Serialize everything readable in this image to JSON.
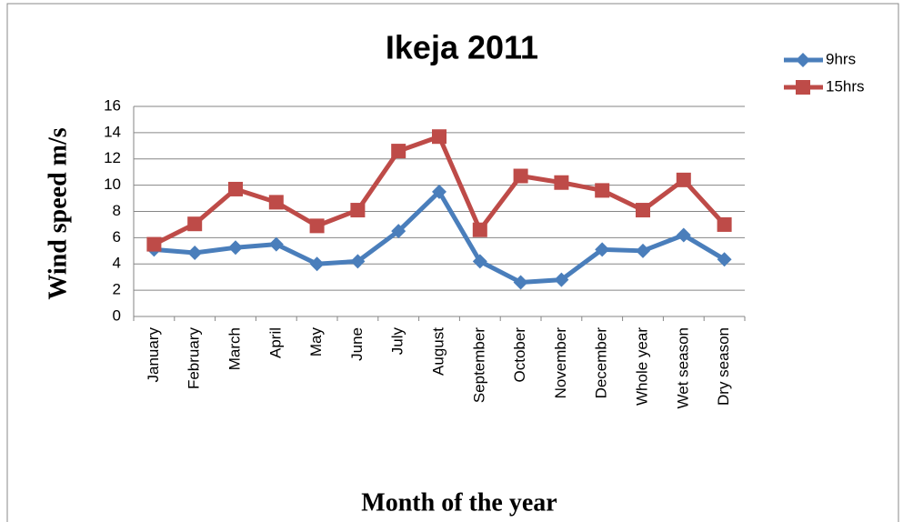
{
  "chart_data": {
    "type": "line",
    "title": "Ikeja 2011",
    "y_label": "Wind speed m/s",
    "x_label": "Month of the year",
    "categories": [
      "January",
      "February",
      "March",
      "April",
      "May",
      "June",
      "July",
      "August",
      "September",
      "October",
      "November",
      "December",
      "Whole year",
      "Wet season",
      "Dry season"
    ],
    "series": [
      {
        "name": "9hrs",
        "color": "#4a7ebb",
        "marker": "diamond",
        "values": [
          5.1,
          4.85,
          5.25,
          5.5,
          4.0,
          4.2,
          6.5,
          9.5,
          4.2,
          2.6,
          2.8,
          5.1,
          5.0,
          6.2,
          4.35
        ]
      },
      {
        "name": "15hrs",
        "color": "#be4b48",
        "marker": "square",
        "values": [
          5.5,
          7.05,
          9.7,
          8.7,
          6.9,
          8.1,
          12.6,
          13.7,
          6.6,
          10.7,
          10.2,
          9.6,
          8.1,
          10.4,
          7.0
        ]
      }
    ],
    "ylim": [
      0,
      16
    ],
    "yticks": [
      0,
      2,
      4,
      6,
      8,
      10,
      12,
      14,
      16
    ],
    "grid": true,
    "legend": "top-right"
  }
}
